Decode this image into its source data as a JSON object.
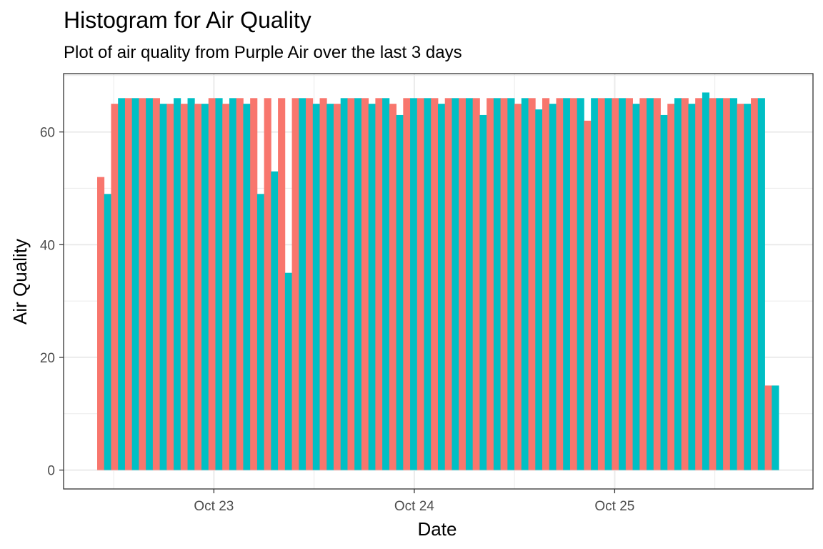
{
  "colors": {
    "series_a": "#F8766D",
    "series_b": "#00BFC4",
    "grid": "#EBEBEB",
    "panel_border": "#333333",
    "tick_text": "#4D4D4D"
  },
  "chart_data": {
    "type": "bar",
    "title": "Histogram for Air Quality",
    "subtitle": "Plot of air quality from Purple Air over the last 3 days",
    "xlabel": "Date",
    "ylabel": "Air Quality",
    "xlim": [
      "2020-10-22T06:00",
      "2020-10-25T23:45"
    ],
    "ylim": [
      -3.35,
      70.35
    ],
    "x_ticks": [
      {
        "value": "2020-10-23",
        "label": "Oct 23"
      },
      {
        "value": "2020-10-24",
        "label": "Oct 24"
      },
      {
        "value": "2020-10-25",
        "label": "Oct 25"
      }
    ],
    "y_ticks": [
      0,
      20,
      40,
      60
    ],
    "grid": true,
    "legend": "none",
    "bars_per_group": 2,
    "values": [
      52,
      49,
      65,
      66,
      66,
      66,
      66,
      66,
      66,
      65,
      65,
      66,
      65,
      66,
      65,
      65,
      66,
      66,
      65,
      66,
      66,
      65,
      66,
      49,
      66,
      53,
      66,
      35,
      66,
      66,
      66,
      65,
      66,
      65,
      65,
      66,
      66,
      66,
      66,
      65,
      66,
      66,
      65,
      63,
      66,
      66,
      66,
      66,
      66,
      65,
      66,
      66,
      66,
      66,
      66,
      63,
      66,
      66,
      66,
      66,
      65,
      66,
      66,
      64,
      66,
      65,
      66,
      66,
      66,
      66,
      62,
      66,
      66,
      66,
      66,
      66,
      66,
      65,
      66,
      66,
      66,
      63,
      65,
      66,
      66,
      65,
      66,
      67,
      66,
      66,
      66,
      66,
      65,
      65,
      66,
      66,
      15,
      15
    ]
  }
}
